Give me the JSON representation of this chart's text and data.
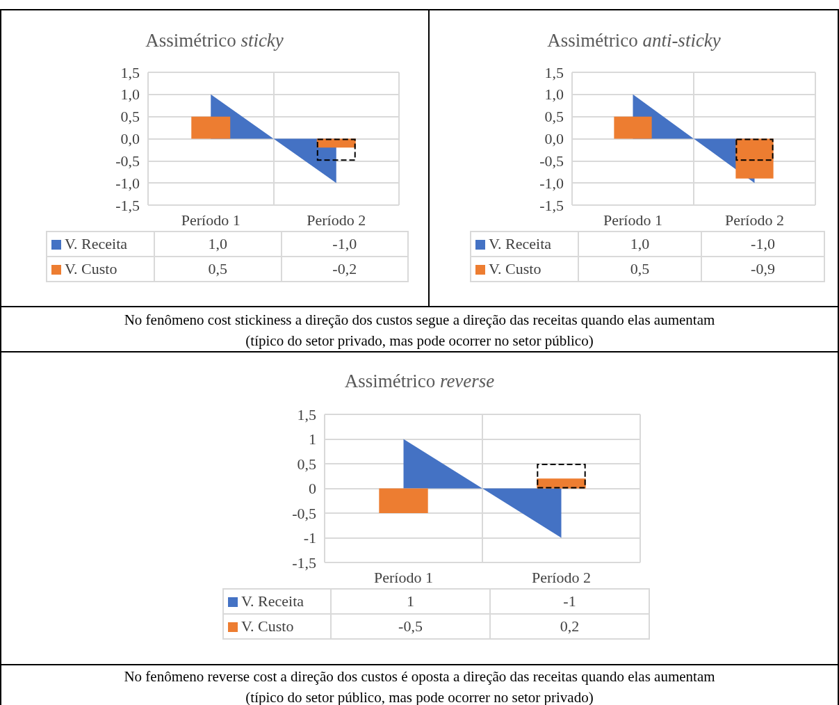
{
  "chart_data": [
    {
      "type": "bar",
      "title": "Assimétrico sticky",
      "categories": [
        "Período 1",
        "Período 2"
      ],
      "ylim": [
        -1.5,
        1.5
      ],
      "yticks": [
        {
          "value": -1.5,
          "label": "-1,5"
        },
        {
          "value": -1,
          "label": "-1,0"
        },
        {
          "value": -0.5,
          "label": "-0,5"
        },
        {
          "value": 0,
          "label": "0,0"
        },
        {
          "value": 0.5,
          "label": "0,5"
        },
        {
          "value": 1,
          "label": "1,0"
        },
        {
          "value": 1.5,
          "label": "1,5"
        }
      ],
      "grid": true,
      "legend": "bottom left",
      "series": [
        {
          "name": "V. Receita",
          "type": "area",
          "color": "#4472c4",
          "values": [
            1,
            -1
          ],
          "value_labels": [
            "1,0",
            "-1,0"
          ]
        },
        {
          "name": "V. Custo",
          "type": "bar",
          "color": "#ed7d31",
          "values": [
            0.5,
            -0.2
          ],
          "value_labels": [
            "0,5",
            "-0,2"
          ]
        },
        {
          "type": "bar",
          "color": "#000000",
          "line_style": "dashed",
          "values": [
            null,
            -0.5
          ]
        }
      ]
    },
    {
      "type": "bar",
      "title": "Assimétrico anti-sticky",
      "categories": [
        "Período 1",
        "Período 2"
      ],
      "ylim": [
        -1.5,
        1.5
      ],
      "yticks": [
        {
          "value": -1.5,
          "label": "-1,5"
        },
        {
          "value": -1,
          "label": "-1,0"
        },
        {
          "value": -0.5,
          "label": "-0,5"
        },
        {
          "value": 0,
          "label": "0,0"
        },
        {
          "value": 0.5,
          "label": "0,5"
        },
        {
          "value": 1,
          "label": "1,0"
        },
        {
          "value": 1.5,
          "label": "1,5"
        }
      ],
      "grid": true,
      "legend": "bottom left",
      "series": [
        {
          "name": "V. Receita",
          "type": "area",
          "color": "#4472c4",
          "values": [
            1,
            -1
          ],
          "value_labels": [
            "1,0",
            "-1,0"
          ]
        },
        {
          "name": "V. Custo",
          "type": "bar",
          "color": "#ed7d31",
          "values": [
            0.5,
            -0.9
          ],
          "value_labels": [
            "0,5",
            "-0,9"
          ]
        },
        {
          "type": "bar",
          "color": "#000000",
          "line_style": "dashed",
          "values": [
            null,
            -0.5
          ]
        }
      ]
    },
    {
      "type": "other",
      "annotations": [
        "No fenômeno cost stickiness a direção dos custos segue a direção das receitas quando elas aumentam",
        "(típico do setor privado, mas pode ocorrer no setor público)"
      ]
    },
    {
      "type": "bar",
      "title": "Assimétrico reverse",
      "categories": [
        "Período 1",
        "Período 2"
      ],
      "ylim": [
        -1.5,
        1.5
      ],
      "yticks": [
        {
          "value": -1.5,
          "label": "-1,5"
        },
        -1,
        {
          "value": -0.5,
          "label": "-0,5"
        },
        0,
        {
          "value": 0.5,
          "label": "0,5"
        },
        1,
        {
          "value": 1.5,
          "label": "1,5"
        }
      ],
      "grid": true,
      "legend": "bottom left",
      "series": [
        {
          "name": "V. Receita",
          "type": "area",
          "color": "#4472c4",
          "values": [
            1,
            -1
          ],
          "value_labels": [
            "1",
            "-1"
          ]
        },
        {
          "name": "V. Custo",
          "type": "bar",
          "color": "#ed7d31",
          "values": [
            -0.5,
            0.2
          ],
          "value_labels": [
            "-0,5",
            "0,2"
          ]
        },
        {
          "type": "bar",
          "color": "#000000",
          "line_style": "dashed",
          "values": [
            null,
            0.5
          ]
        }
      ]
    },
    {
      "type": "other",
      "annotations": [
        "No fenômeno reverse cost a direção dos custos é oposta a direção das receitas quando elas aumentam",
        "(típico do setor público, mas pode ocorrer no setor privado)"
      ]
    }
  ]
}
